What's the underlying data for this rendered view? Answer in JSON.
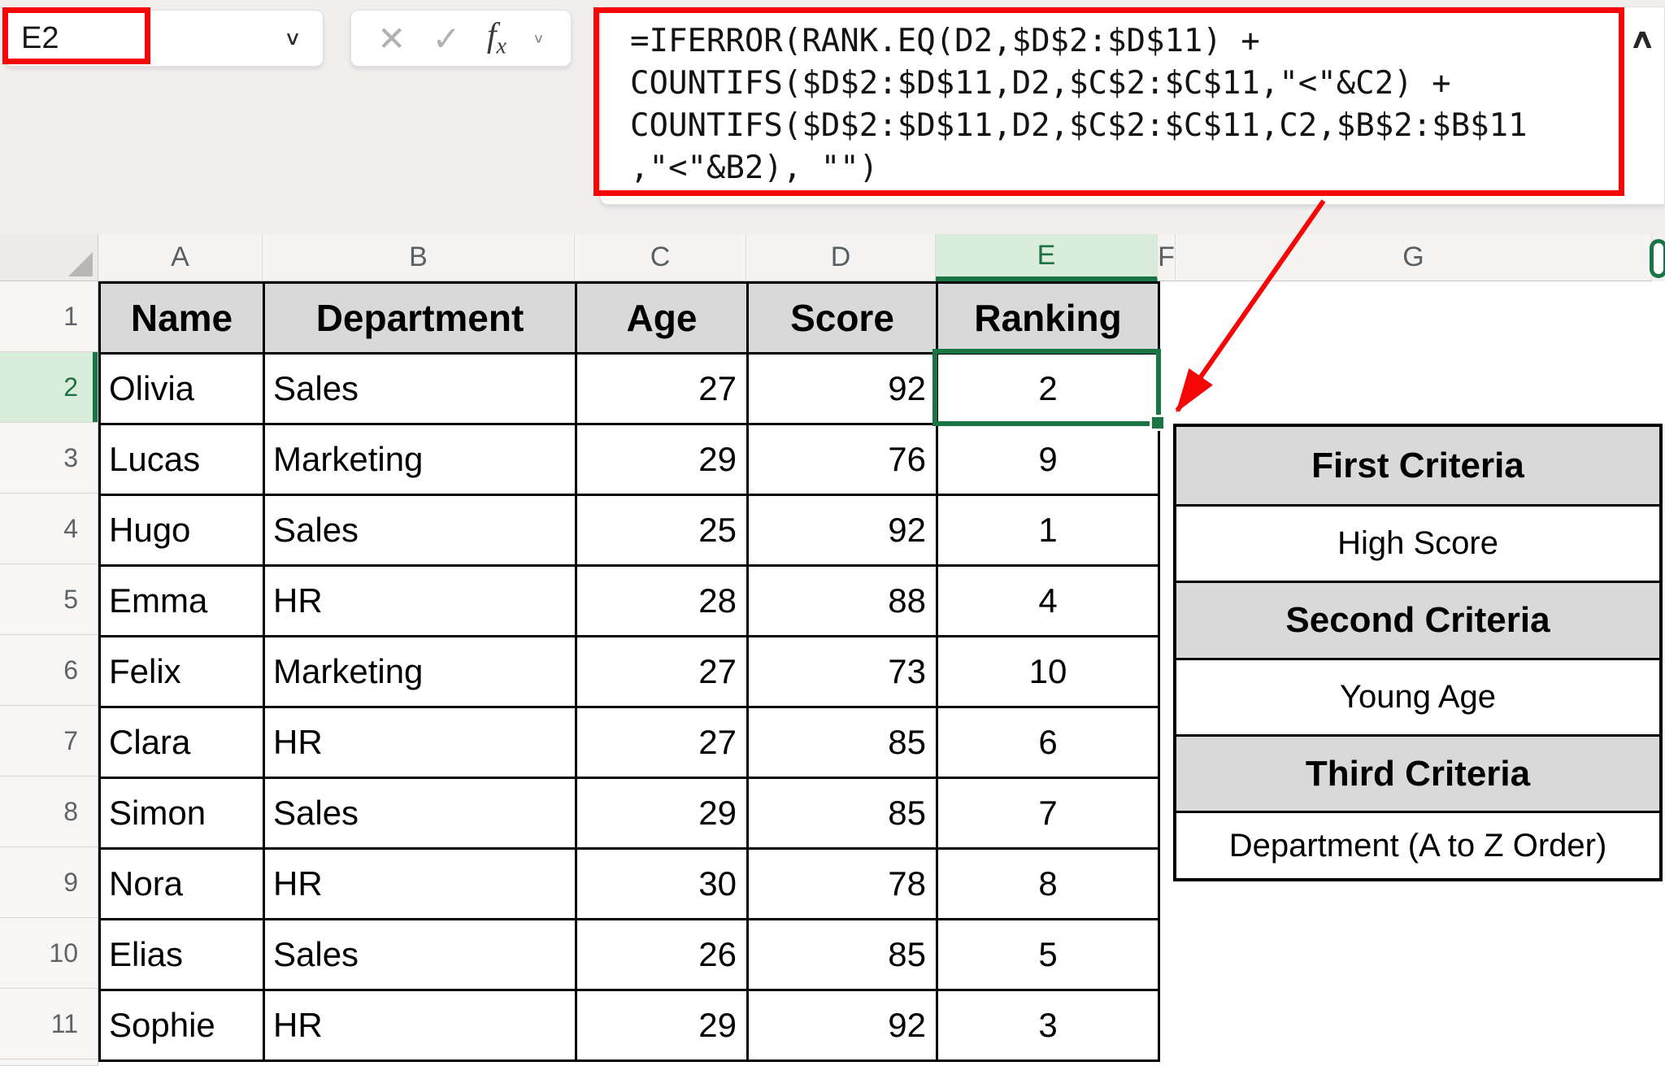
{
  "name_box": {
    "value": "E2"
  },
  "formula_bar": {
    "buttons": {
      "cancel_glyph": "✕",
      "enter_glyph": "✓",
      "fx_label": "fx"
    },
    "formula_lines": [
      "=IFERROR(RANK.EQ(D2,$D$2:$D$11) +",
      "COUNTIFS($D$2:$D$11,D2,$C$2:$C$11,\"<\"&C2) +",
      "COUNTIFS($D$2:$D$11,D2,$C$2:$C$11,C2,$B$2:$B$11",
      ",\"<\"&B2), \"\")"
    ],
    "collapse_glyph": "∧",
    "dropdown_glyph": "∨"
  },
  "grid": {
    "column_letters": [
      "A",
      "B",
      "C",
      "D",
      "E",
      "F",
      "G"
    ],
    "selected_column": "E",
    "row_numbers": [
      "1",
      "2",
      "3",
      "4",
      "5",
      "6",
      "7",
      "8",
      "9",
      "10",
      "11"
    ],
    "selected_row": "2",
    "selected_cell": "E2"
  },
  "data_table": {
    "headers": [
      "Name",
      "Department",
      "Age",
      "Score",
      "Ranking"
    ],
    "rows": [
      [
        "Olivia",
        "Sales",
        "27",
        "92",
        "2"
      ],
      [
        "Lucas",
        "Marketing",
        "29",
        "76",
        "9"
      ],
      [
        "Hugo",
        "Sales",
        "25",
        "92",
        "1"
      ],
      [
        "Emma",
        "HR",
        "28",
        "88",
        "4"
      ],
      [
        "Felix",
        "Marketing",
        "27",
        "73",
        "10"
      ],
      [
        "Clara",
        "HR",
        "27",
        "85",
        "6"
      ],
      [
        "Simon",
        "Sales",
        "29",
        "85",
        "7"
      ],
      [
        "Nora",
        "HR",
        "30",
        "78",
        "8"
      ],
      [
        "Elias",
        "Sales",
        "26",
        "85",
        "5"
      ],
      [
        "Sophie",
        "HR",
        "29",
        "92",
        "3"
      ]
    ]
  },
  "criteria_table": {
    "rows": [
      {
        "label": "First Criteria",
        "type": "header"
      },
      {
        "label": "High Score",
        "type": "value"
      },
      {
        "label": "Second Criteria",
        "type": "header"
      },
      {
        "label": "Young Age",
        "type": "value"
      },
      {
        "label": "Third Criteria",
        "type": "header"
      },
      {
        "label": "Department (A to Z Order)",
        "type": "value"
      }
    ]
  },
  "colors": {
    "annotation_red": "#f60707",
    "selection_green": "#1a7544",
    "selection_green_light": "#d9edda",
    "header_fill_gray": "#d9d9d9"
  }
}
